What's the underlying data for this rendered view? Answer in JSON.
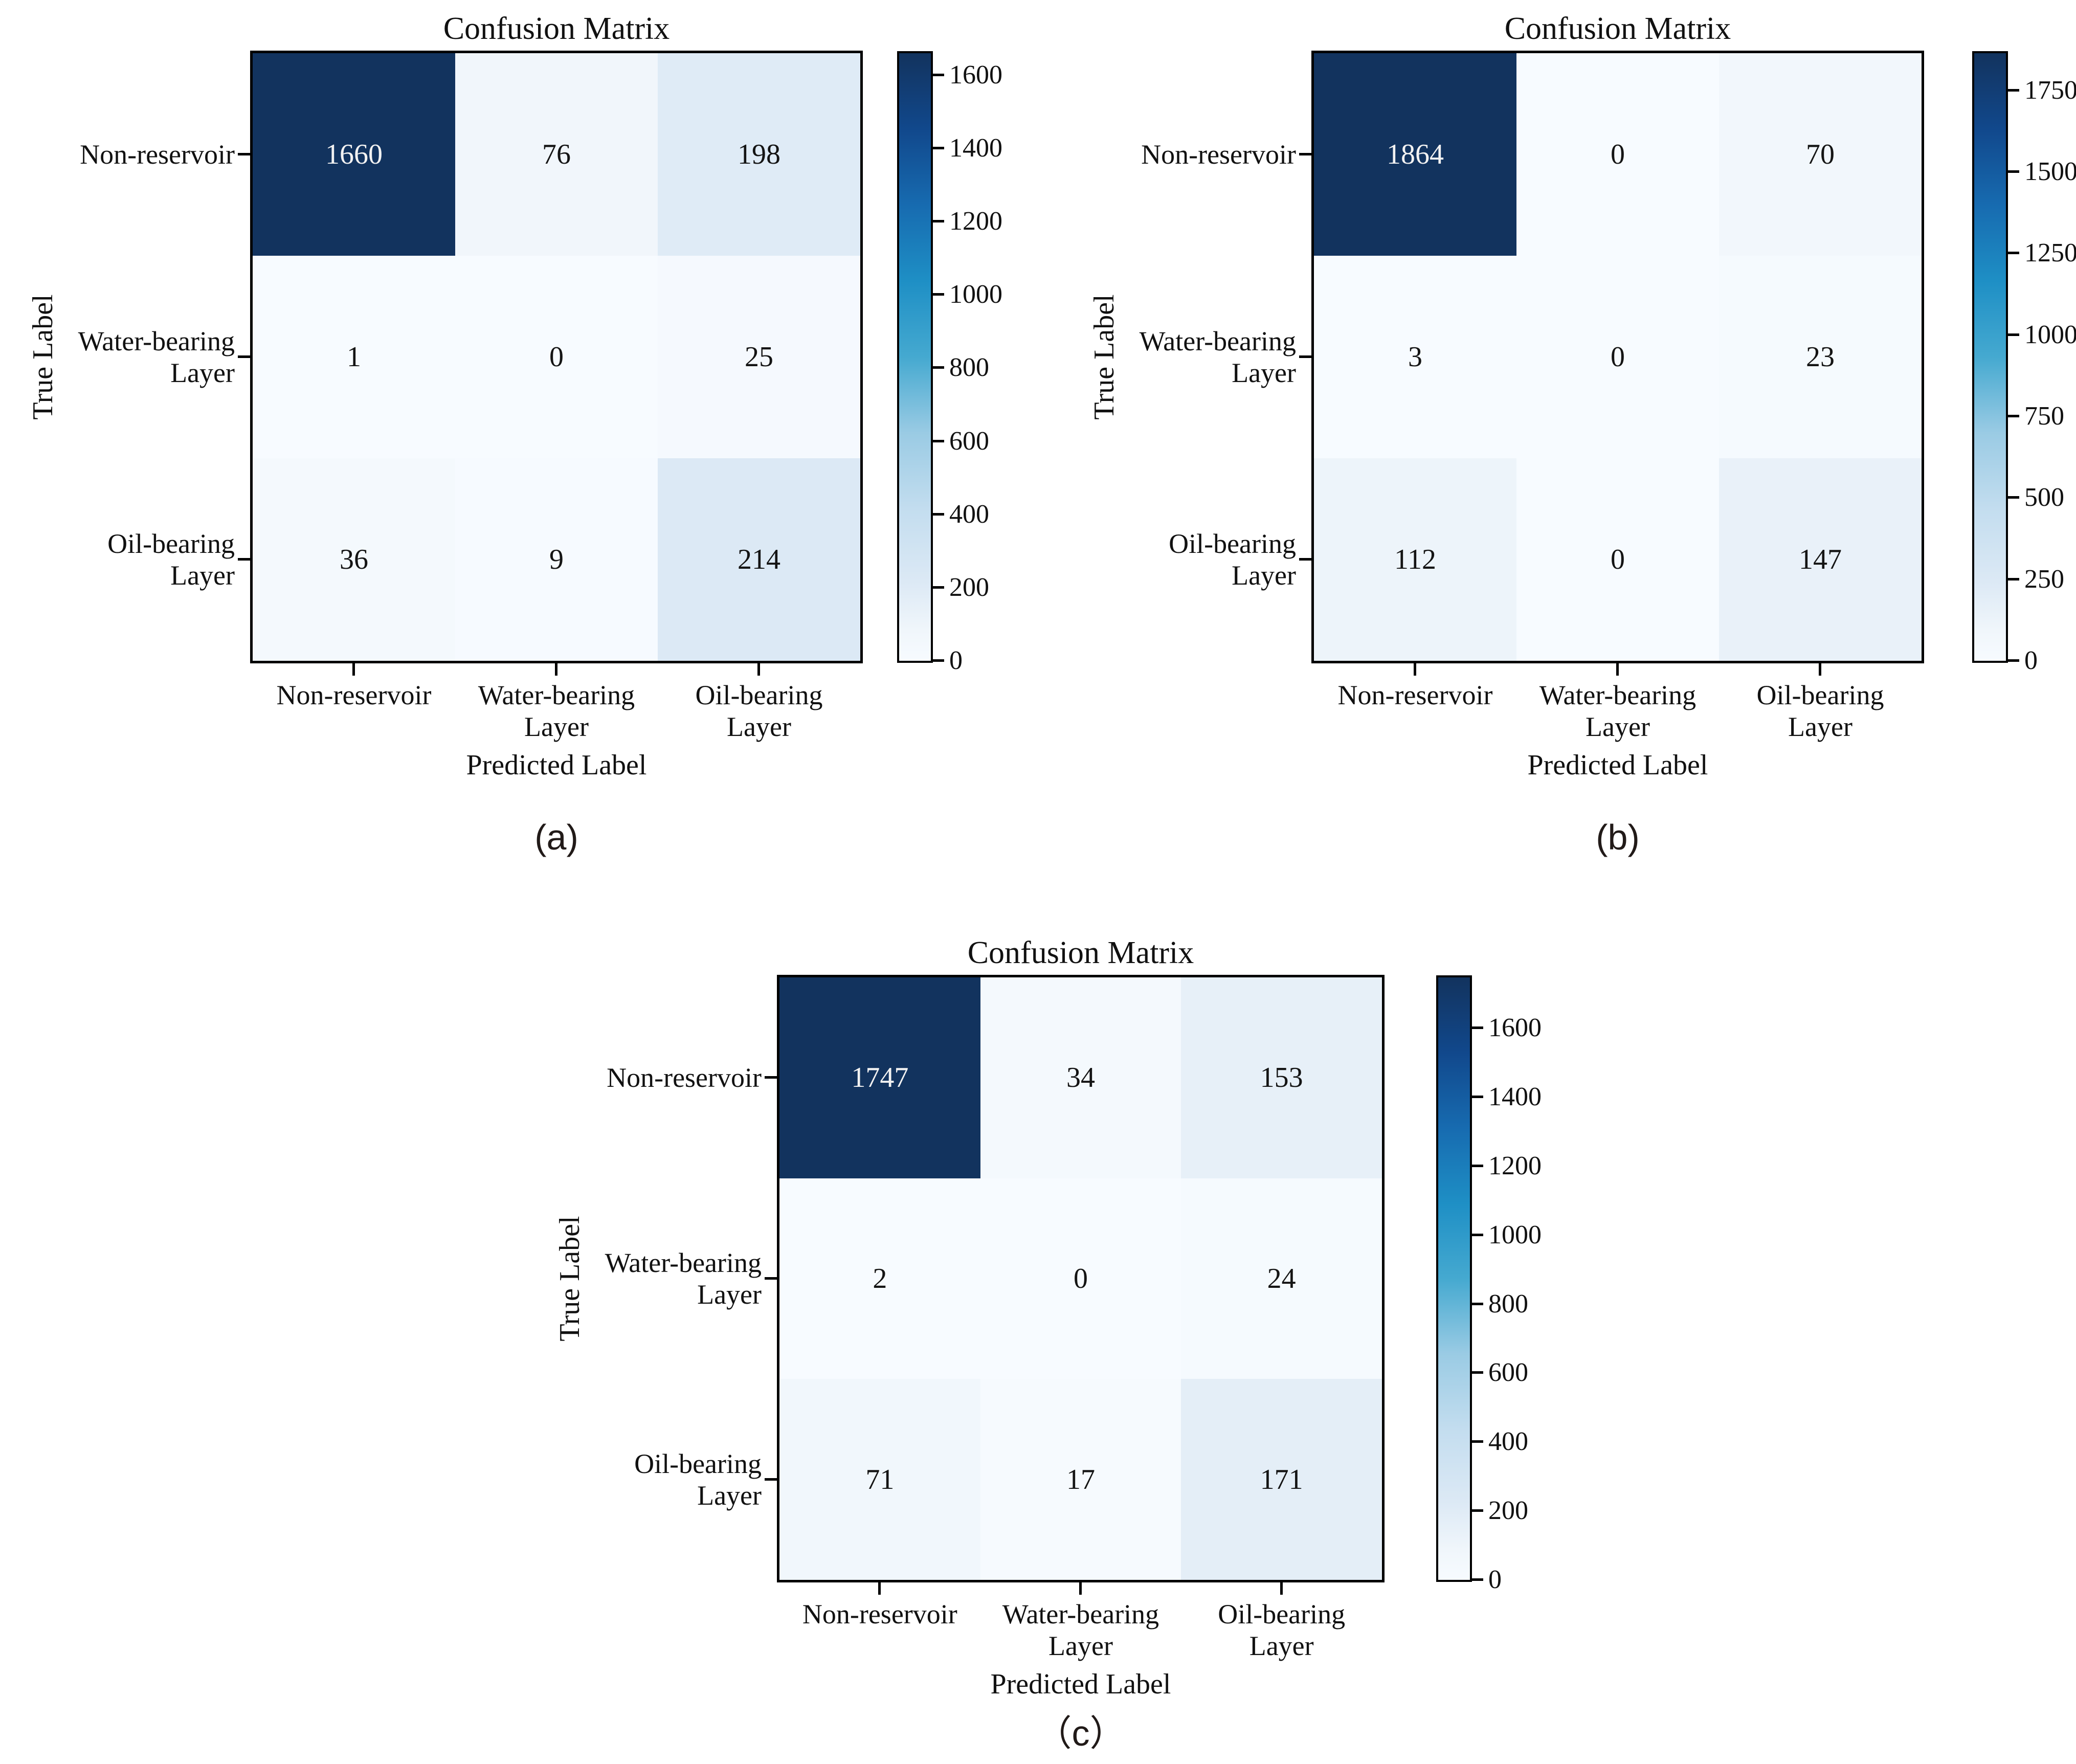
{
  "figure": {
    "background": "#ffffff",
    "axis_color": "#000000",
    "dark_cell_text": "#f2f2f2",
    "light_cell_text": "#141414",
    "color_scale": {
      "description": "sequential white-to-dark-navy (Blues-like) colormap",
      "stops": [
        {
          "t": 0.0,
          "c": "#f7fbff"
        },
        {
          "t": 0.05,
          "c": "#f0f6fb"
        },
        {
          "t": 0.13,
          "c": "#dce9f5"
        },
        {
          "t": 0.25,
          "c": "#c3ddef"
        },
        {
          "t": 0.375,
          "c": "#9acbe4"
        },
        {
          "t": 0.5,
          "c": "#45a9d0"
        },
        {
          "t": 0.625,
          "c": "#1e8fc5"
        },
        {
          "t": 0.75,
          "c": "#176bb0"
        },
        {
          "t": 0.875,
          "c": "#11488c"
        },
        {
          "t": 1.0,
          "c": "#12335e"
        }
      ]
    }
  },
  "chart_data": [
    {
      "type": "heatmap",
      "panel": "a",
      "title": "Confusion Matrix",
      "xlabel": "Predicted Label",
      "ylabel": "True Label",
      "x_categories": [
        "Non-reservoir",
        "Water-bearing\nLayer",
        "Oil-bearing\nLayer"
      ],
      "y_categories": [
        "Non-reservoir",
        "Water-bearing\nLayer",
        "Oil-bearing\nLayer"
      ],
      "values": [
        [
          1660,
          76,
          198
        ],
        [
          1,
          0,
          25
        ],
        [
          36,
          9,
          214
        ]
      ],
      "vmin": 0,
      "vmax": 1660,
      "colorbar_ticks": [
        0,
        200,
        400,
        600,
        800,
        1000,
        1200,
        1400,
        1600
      ],
      "legend_position": "right-colorbar",
      "grid": false,
      "caption": "(a)"
    },
    {
      "type": "heatmap",
      "panel": "b",
      "title": "Confusion Matrix",
      "xlabel": "Predicted Label",
      "ylabel": "True Label",
      "x_categories": [
        "Non-reservoir",
        "Water-bearing\nLayer",
        "Oil-bearing\nLayer"
      ],
      "y_categories": [
        "Non-reservoir",
        "Water-bearing\nLayer",
        "Oil-bearing\nLayer"
      ],
      "values": [
        [
          1864,
          0,
          70
        ],
        [
          3,
          0,
          23
        ],
        [
          112,
          0,
          147
        ]
      ],
      "vmin": 0,
      "vmax": 1864,
      "colorbar_ticks": [
        0,
        250,
        500,
        750,
        1000,
        1250,
        1500,
        1750
      ],
      "legend_position": "right-colorbar",
      "grid": false,
      "caption": "(b)"
    },
    {
      "type": "heatmap",
      "panel": "c",
      "title": "Confusion Matrix",
      "xlabel": "Predicted Label",
      "ylabel": "True Label",
      "x_categories": [
        "Non-reservoir",
        "Water-bearing\nLayer",
        "Oil-bearing\nLayer"
      ],
      "y_categories": [
        "Non-reservoir",
        "Water-bearing\nLayer",
        "Oil-bearing\nLayer"
      ],
      "values": [
        [
          1747,
          34,
          153
        ],
        [
          2,
          0,
          24
        ],
        [
          71,
          17,
          171
        ]
      ],
      "vmin": 0,
      "vmax": 1747,
      "colorbar_ticks": [
        0,
        200,
        400,
        600,
        800,
        1000,
        1200,
        1400,
        1600
      ],
      "legend_position": "right-colorbar",
      "grid": false,
      "caption": "（c）"
    }
  ]
}
